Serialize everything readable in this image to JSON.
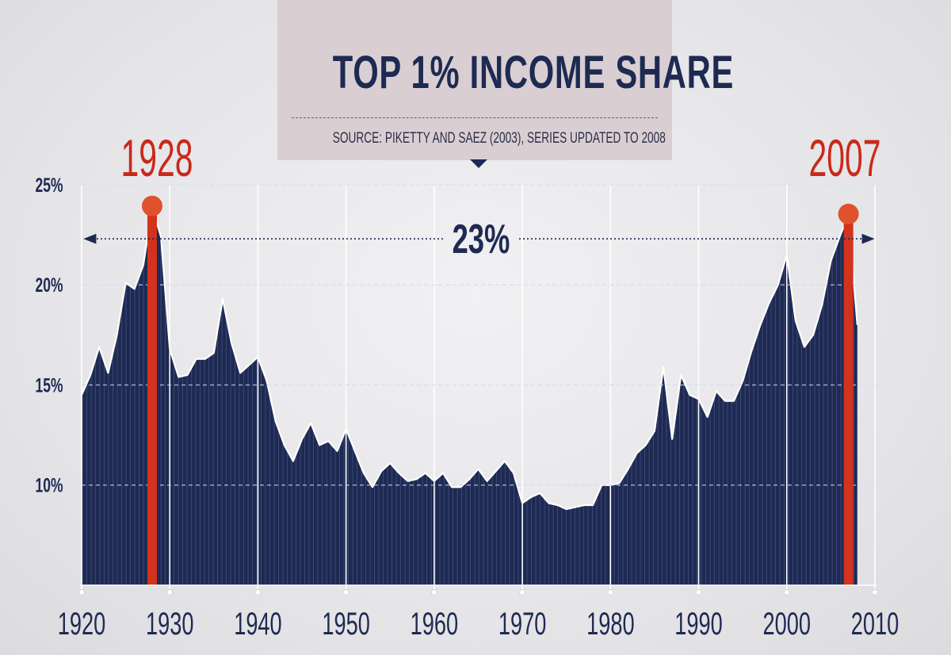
{
  "chart_data": {
    "type": "area",
    "title": "TOP 1% INCOME SHARE",
    "subtitle": "SOURCE: PIKETTY AND SAEZ (2003), SERIES UPDATED TO 2008",
    "xlabel": "",
    "ylabel": "",
    "xlim": [
      1920,
      2010
    ],
    "ylim": [
      5,
      25
    ],
    "x_ticks": [
      1920,
      1930,
      1940,
      1950,
      1960,
      1970,
      1980,
      1990,
      2000,
      2010
    ],
    "x_tick_labels": [
      "1920",
      "1930",
      "1940",
      "1950",
      "1960",
      "1970",
      "1980",
      "1990",
      "2000",
      "2010"
    ],
    "y_ticks": [
      10,
      15,
      20,
      25
    ],
    "y_tick_labels": [
      "10%",
      "15%",
      "20%",
      "25%"
    ],
    "grid": "horizontal dashed at 10, 15, 20, 25",
    "colors": {
      "area": "#1e2a52",
      "highlight": "#d3321d",
      "label_text": "#1e2a52",
      "highlight_text": "#c9291a"
    },
    "series": [
      {
        "x": [
          1920,
          1921,
          1922,
          1923,
          1924,
          1925,
          1926,
          1927,
          1928,
          1929,
          1930,
          1931,
          1932,
          1933,
          1934,
          1935,
          1936,
          1937,
          1938,
          1939,
          1940,
          1941,
          1942,
          1943,
          1944,
          1945,
          1946,
          1947,
          1948,
          1949,
          1950,
          1951,
          1952,
          1953,
          1954,
          1955,
          1956,
          1957,
          1958,
          1959,
          1960,
          1961,
          1962,
          1963,
          1964,
          1965,
          1966,
          1967,
          1968,
          1969,
          1970,
          1971,
          1972,
          1973,
          1974,
          1975,
          1976,
          1977,
          1978,
          1979,
          1980,
          1981,
          1982,
          1983,
          1984,
          1985,
          1986,
          1987,
          1988,
          1989,
          1990,
          1991,
          1992,
          1993,
          1994,
          1995,
          1996,
          1997,
          1998,
          1999,
          2000,
          2001,
          2002,
          2003,
          2004,
          2005,
          2006,
          2007,
          2008
        ],
        "values": [
          14.5,
          15.5,
          16.9,
          15.6,
          17.5,
          20.1,
          19.8,
          21.0,
          23.9,
          22.4,
          16.8,
          15.4,
          15.5,
          16.3,
          16.3,
          16.6,
          19.3,
          17.1,
          15.6,
          16.0,
          16.4,
          15.2,
          13.2,
          12.0,
          11.2,
          12.3,
          13.1,
          12.0,
          12.2,
          11.7,
          12.8,
          11.7,
          10.6,
          9.9,
          10.7,
          11.1,
          10.6,
          10.2,
          10.3,
          10.6,
          10.2,
          10.6,
          9.9,
          9.9,
          10.3,
          10.8,
          10.2,
          10.7,
          11.2,
          10.6,
          9.1,
          9.4,
          9.6,
          9.1,
          9.0,
          8.8,
          8.9,
          9.0,
          9.0,
          10.0,
          10.0,
          10.1,
          10.8,
          11.6,
          12.0,
          12.7,
          15.9,
          12.3,
          15.5,
          14.5,
          14.3,
          13.4,
          14.7,
          14.2,
          14.2,
          15.2,
          16.7,
          18.0,
          19.1,
          20.0,
          21.5,
          18.2,
          16.9,
          17.5,
          19.0,
          21.2,
          22.4,
          23.5,
          18.0
        ]
      }
    ],
    "highlights": [
      {
        "year_label": "1928",
        "x": 1928,
        "value": 23.9
      },
      {
        "year_label": "2007",
        "x": 2007,
        "value": 23.5
      }
    ],
    "annotation": {
      "label": "23%",
      "value": 22.3,
      "x_range": [
        1920,
        2010
      ]
    }
  }
}
